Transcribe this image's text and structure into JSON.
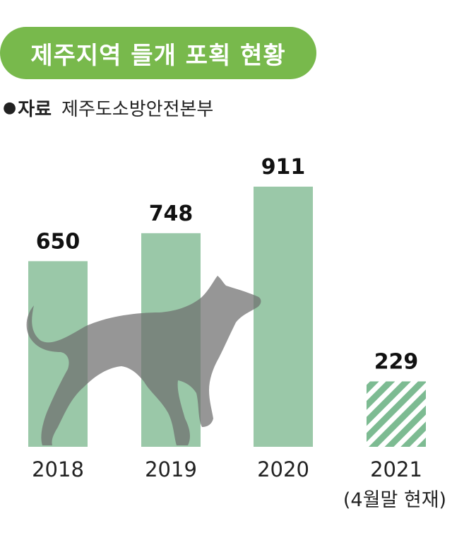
{
  "title": "제주지역 들개 포획 현황",
  "source": {
    "bullet": "●",
    "label": "자료",
    "value": "제주도소방안전본부"
  },
  "chart_data": {
    "type": "bar",
    "title": "제주지역 들개 포획 현황",
    "categories": [
      "2018",
      "2019",
      "2020",
      "2021"
    ],
    "category_notes": [
      "",
      "",
      "",
      "(4월말 현재)"
    ],
    "values": [
      650,
      748,
      911,
      229
    ],
    "data_labels": [
      "650",
      "748",
      "911",
      "229"
    ],
    "hatched": [
      false,
      false,
      false,
      true
    ],
    "bar_color": "#9ac8a8",
    "hatch_color": "#7dbb92",
    "decoration": "dog-silhouette",
    "xlabel": "",
    "ylabel": "",
    "ylim": [
      0,
      911
    ],
    "grid": false
  },
  "colors": {
    "title_background": "#78b94c",
    "title_text": "#ffffff",
    "bar": "#9ac8a8",
    "dog": "#6e6e6e"
  }
}
